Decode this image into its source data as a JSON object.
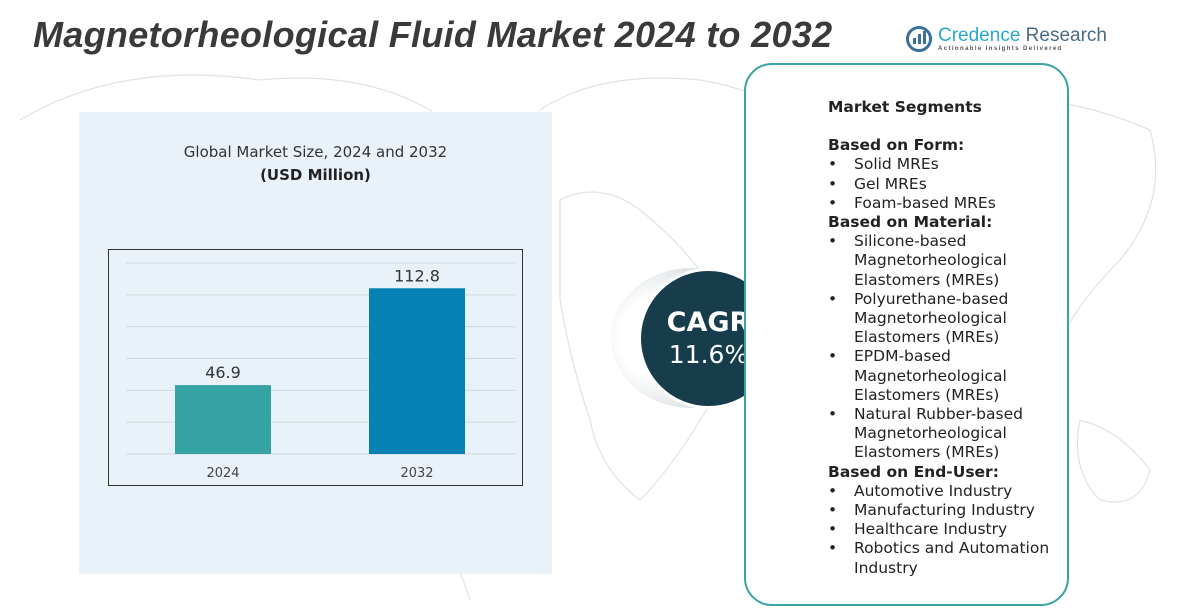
{
  "title": "Magnetorheological Fluid Market 2024 to 2032",
  "logo": {
    "name_a": "Credence",
    "name_b": " Research",
    "tagline": "Actionable Insights Delivered"
  },
  "chart_data": {
    "type": "bar",
    "title": "Global Market Size, 2024 and 2032",
    "subtitle": "(USD Million)",
    "categories": [
      "2024",
      "2032"
    ],
    "values": [
      46.9,
      112.8
    ],
    "data_labels": [
      "46.9",
      "112.8"
    ],
    "colors": [
      "#35a3a3",
      "#0681b3"
    ],
    "ylim": [
      0,
      130
    ],
    "grid": true,
    "xlabel": "",
    "ylabel": ""
  },
  "cagr": {
    "label": "CAGR",
    "value": "11.6%"
  },
  "segments": {
    "heading": "Market Segments",
    "groups": [
      {
        "title": "Based on Form:",
        "items": [
          "Solid MREs",
          "Gel MREs",
          "Foam-based MREs"
        ]
      },
      {
        "title": "Based on Material:",
        "items": [
          "Silicone-based Magnetorheological Elastomers (MREs)",
          "Polyurethane-based Magnetorheological Elastomers (MREs)",
          "EPDM-based Magnetorheological Elastomers (MREs)",
          "Natural Rubber-based Magnetorheological Elastomers (MREs)"
        ]
      },
      {
        "title": "Based on End-User:",
        "items": [
          "Automotive Industry",
          "Manufacturing Industry",
          "Healthcare Industry",
          "Robotics and Automation Industry"
        ]
      }
    ]
  }
}
